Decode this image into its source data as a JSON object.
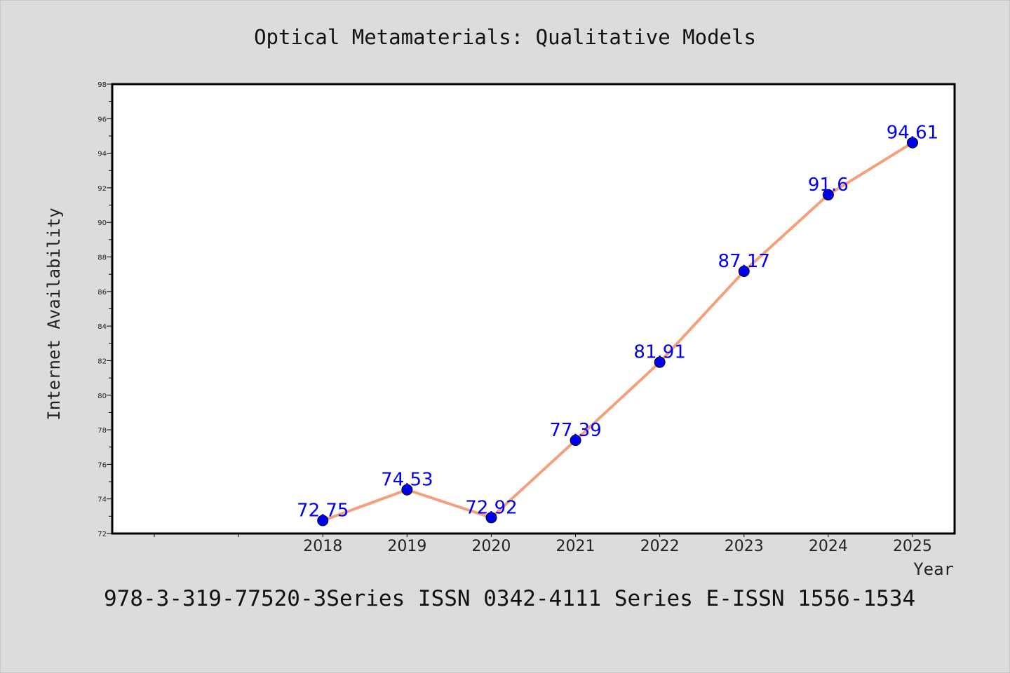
{
  "chart_data": {
    "type": "line",
    "title": "Optical Metamaterials: Qualitative Models",
    "xlabel": "Year",
    "ylabel": "Internet Availability",
    "footer": "978-3-319-77520-3Series ISSN 0342-4111 Series E-ISSN 1556-1534",
    "categories": [
      "2018",
      "2019",
      "2020",
      "2021",
      "2022",
      "2023",
      "2024",
      "2025"
    ],
    "series": [
      {
        "values": [
          72.75,
          74.53,
          72.92,
          77.39,
          81.91,
          87.17,
          91.6,
          94.61
        ],
        "labels": [
          "72.75",
          "74.53",
          "72.92",
          "77.39",
          "81.91",
          "87.17",
          "91.6",
          "94.61"
        ]
      }
    ],
    "ylim": [
      72,
      98
    ],
    "yticks": [
      "72",
      "74",
      "76",
      "78",
      "80",
      "82",
      "84",
      "86",
      "88",
      "90",
      "92",
      "94",
      "96",
      "98"
    ],
    "grid": false,
    "legend": "none",
    "colors": {
      "background": "#dcdcdc",
      "plot_background": "#ffffff",
      "line": "#f4a07c",
      "marker": "#0000ee",
      "data_label": "#0000ee"
    }
  }
}
